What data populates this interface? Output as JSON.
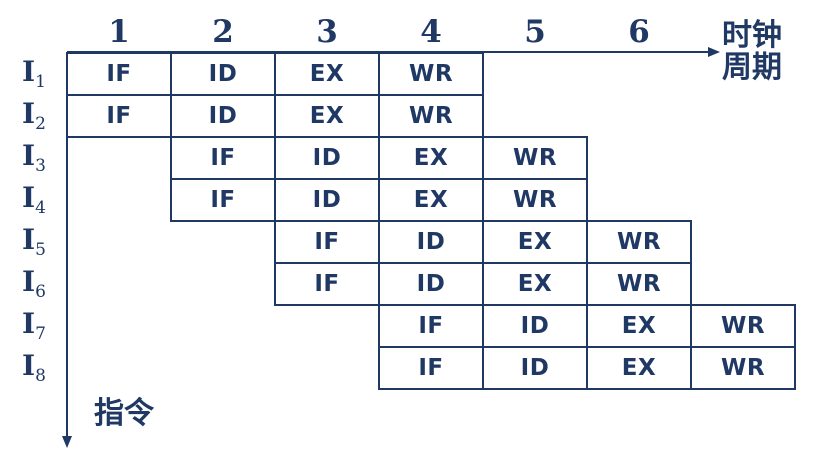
{
  "columns": [
    "1",
    "2",
    "3",
    "4",
    "5",
    "6"
  ],
  "x_axis_title": [
    "时钟",
    "周期"
  ],
  "y_axis_title": "指令",
  "rows": [
    {
      "base": "I",
      "sub": "1",
      "start": 0,
      "stages": [
        "IF",
        "ID",
        "EX",
        "WR"
      ]
    },
    {
      "base": "I",
      "sub": "2",
      "start": 0,
      "stages": [
        "IF",
        "ID",
        "EX",
        "WR"
      ]
    },
    {
      "base": "I",
      "sub": "3",
      "start": 1,
      "stages": [
        "IF",
        "ID",
        "EX",
        "WR"
      ]
    },
    {
      "base": "I",
      "sub": "4",
      "start": 1,
      "stages": [
        "IF",
        "ID",
        "EX",
        "WR"
      ]
    },
    {
      "base": "I",
      "sub": "5",
      "start": 2,
      "stages": [
        "IF",
        "ID",
        "EX",
        "WR"
      ]
    },
    {
      "base": "I",
      "sub": "6",
      "start": 2,
      "stages": [
        "IF",
        "ID",
        "EX",
        "WR"
      ]
    },
    {
      "base": "I",
      "sub": "7",
      "start": 3,
      "stages": [
        "IF",
        "ID",
        "EX",
        "WR"
      ]
    },
    {
      "base": "I",
      "sub": "8",
      "start": 3,
      "stages": [
        "IF",
        "ID",
        "EX",
        "WR"
      ]
    }
  ],
  "colors": {
    "primary": "#1f3864"
  }
}
